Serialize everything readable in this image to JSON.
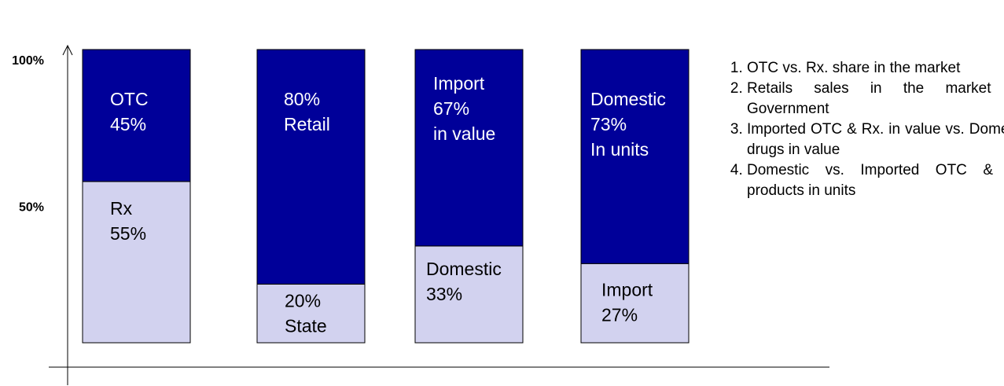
{
  "chart_data": {
    "type": "stacked-bar",
    "ylim": [
      0,
      100
    ],
    "yticks": [
      {
        "value": 50,
        "label": "50%"
      },
      {
        "value": 100,
        "label": "100%"
      }
    ],
    "colors": [
      "#d2d2ef",
      "#000099"
    ],
    "bars": [
      {
        "segments": [
          {
            "value": 55,
            "text": [
              "Rx",
              "55%"
            ]
          },
          {
            "value": 45,
            "text": [
              "OTC",
              "45%"
            ]
          }
        ]
      },
      {
        "segments": [
          {
            "value": 20,
            "text": [
              "20%",
              "State"
            ]
          },
          {
            "value": 80,
            "text": [
              "80%",
              "Retail"
            ]
          }
        ]
      },
      {
        "segments": [
          {
            "value": 33,
            "text": [
              "Domestic",
              "33%"
            ]
          },
          {
            "value": 67,
            "text": [
              "Import",
              "67%",
              "in value"
            ]
          }
        ]
      },
      {
        "segments": [
          {
            "value": 27,
            "text": [
              "Import",
              "27%"
            ]
          },
          {
            "value": 73,
            "text": [
              "Domestic",
              "73%",
              "In units"
            ]
          }
        ]
      }
    ],
    "notes": [
      "OTC vs. Rx. share in the market",
      "Retails sales in the market vs. Government",
      "Imported OTC & Rx. in value vs. Domestic drugs in value",
      "Domestic vs. Imported OTC & Rx. products in units"
    ]
  }
}
